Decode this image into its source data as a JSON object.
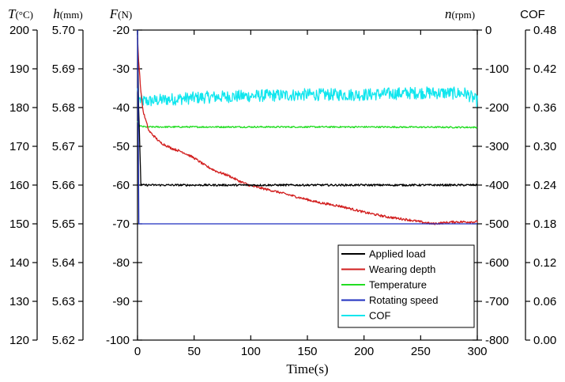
{
  "chart_data": {
    "type": "line",
    "xlabel": "Time(s)",
    "xlim": [
      0,
      300
    ],
    "x_ticks": [
      "0",
      "50",
      "100",
      "150",
      "200",
      "250",
      "300"
    ],
    "axes": {
      "T": {
        "var": "T",
        "unit": "(°C)",
        "range": [
          120,
          200
        ],
        "ticks": [
          "200",
          "190",
          "180",
          "170",
          "160",
          "150",
          "140",
          "130",
          "120"
        ]
      },
      "h": {
        "var": "h",
        "unit": "(mm)",
        "range": [
          5.62,
          5.7
        ],
        "ticks": [
          "5.70",
          "5.69",
          "5.68",
          "5.67",
          "5.66",
          "5.65",
          "5.64",
          "5.63",
          "5.62"
        ]
      },
      "F": {
        "var": "F",
        "unit": "(N)",
        "range": [
          -100,
          -20
        ],
        "ticks": [
          "-20",
          "-30",
          "-40",
          "-50",
          "-60",
          "-70",
          "-80",
          "-90",
          "-100"
        ]
      },
      "n": {
        "var": "n",
        "unit": "(rpm)",
        "range": [
          -800,
          0
        ],
        "ticks": [
          "0",
          "-100",
          "-200",
          "-300",
          "-400",
          "-500",
          "-600",
          "-700",
          "-800"
        ]
      },
      "COF": {
        "title": "COF",
        "range": [
          0.0,
          0.48
        ],
        "ticks": [
          "0.48",
          "0.42",
          "0.36",
          "0.30",
          "0.24",
          "0.18",
          "0.12",
          "0.06",
          "0.00"
        ]
      }
    },
    "legend_position": "bottom-right",
    "series": [
      {
        "name": "Applied load",
        "axis": "F",
        "color": "#000000",
        "x": [
          0,
          1,
          3,
          10,
          50,
          100,
          150,
          200,
          250,
          300
        ],
        "y": [
          -20,
          -40,
          -60,
          -60,
          -60,
          -60,
          -60,
          -60,
          -60,
          -60
        ],
        "noise": 0.25
      },
      {
        "name": "Wearing depth",
        "axis": "h",
        "color": "#d21e1e",
        "x": [
          0,
          1,
          3,
          5,
          10,
          20,
          30,
          40,
          50,
          60,
          70,
          80,
          90,
          100,
          120,
          140,
          160,
          180,
          200,
          220,
          240,
          260,
          280,
          300
        ],
        "y": [
          5.698,
          5.692,
          5.684,
          5.679,
          5.674,
          5.671,
          5.6695,
          5.6685,
          5.667,
          5.665,
          5.6635,
          5.6625,
          5.661,
          5.6598,
          5.6585,
          5.657,
          5.6555,
          5.6545,
          5.653,
          5.6518,
          5.651,
          5.65,
          5.6505,
          5.6505
        ],
        "noise": 0.0003
      },
      {
        "name": "Temperature",
        "axis": "T",
        "color": "#22dd22",
        "x": [
          0,
          1,
          2,
          4,
          8,
          20,
          100,
          200,
          300
        ],
        "y": [
          176.5,
          175.8,
          175.3,
          175.1,
          175,
          175,
          175,
          175,
          174.9
        ],
        "noise": 0.2
      },
      {
        "name": "Rotating speed",
        "axis": "n",
        "color": "#1f2fbf",
        "x": [
          0,
          0.6,
          1.2,
          2,
          300
        ],
        "y": [
          0,
          -250,
          -500,
          -500,
          -500
        ],
        "noise": 0
      },
      {
        "name": "COF",
        "axis": "COF",
        "color": "#11e6ee",
        "x": [
          0,
          1,
          3,
          10,
          30,
          60,
          100,
          150,
          200,
          250,
          290,
          300
        ],
        "y": [
          0.39,
          0.375,
          0.37,
          0.37,
          0.373,
          0.376,
          0.378,
          0.38,
          0.38,
          0.383,
          0.382,
          0.37
        ],
        "noise": 0.006
      }
    ]
  }
}
